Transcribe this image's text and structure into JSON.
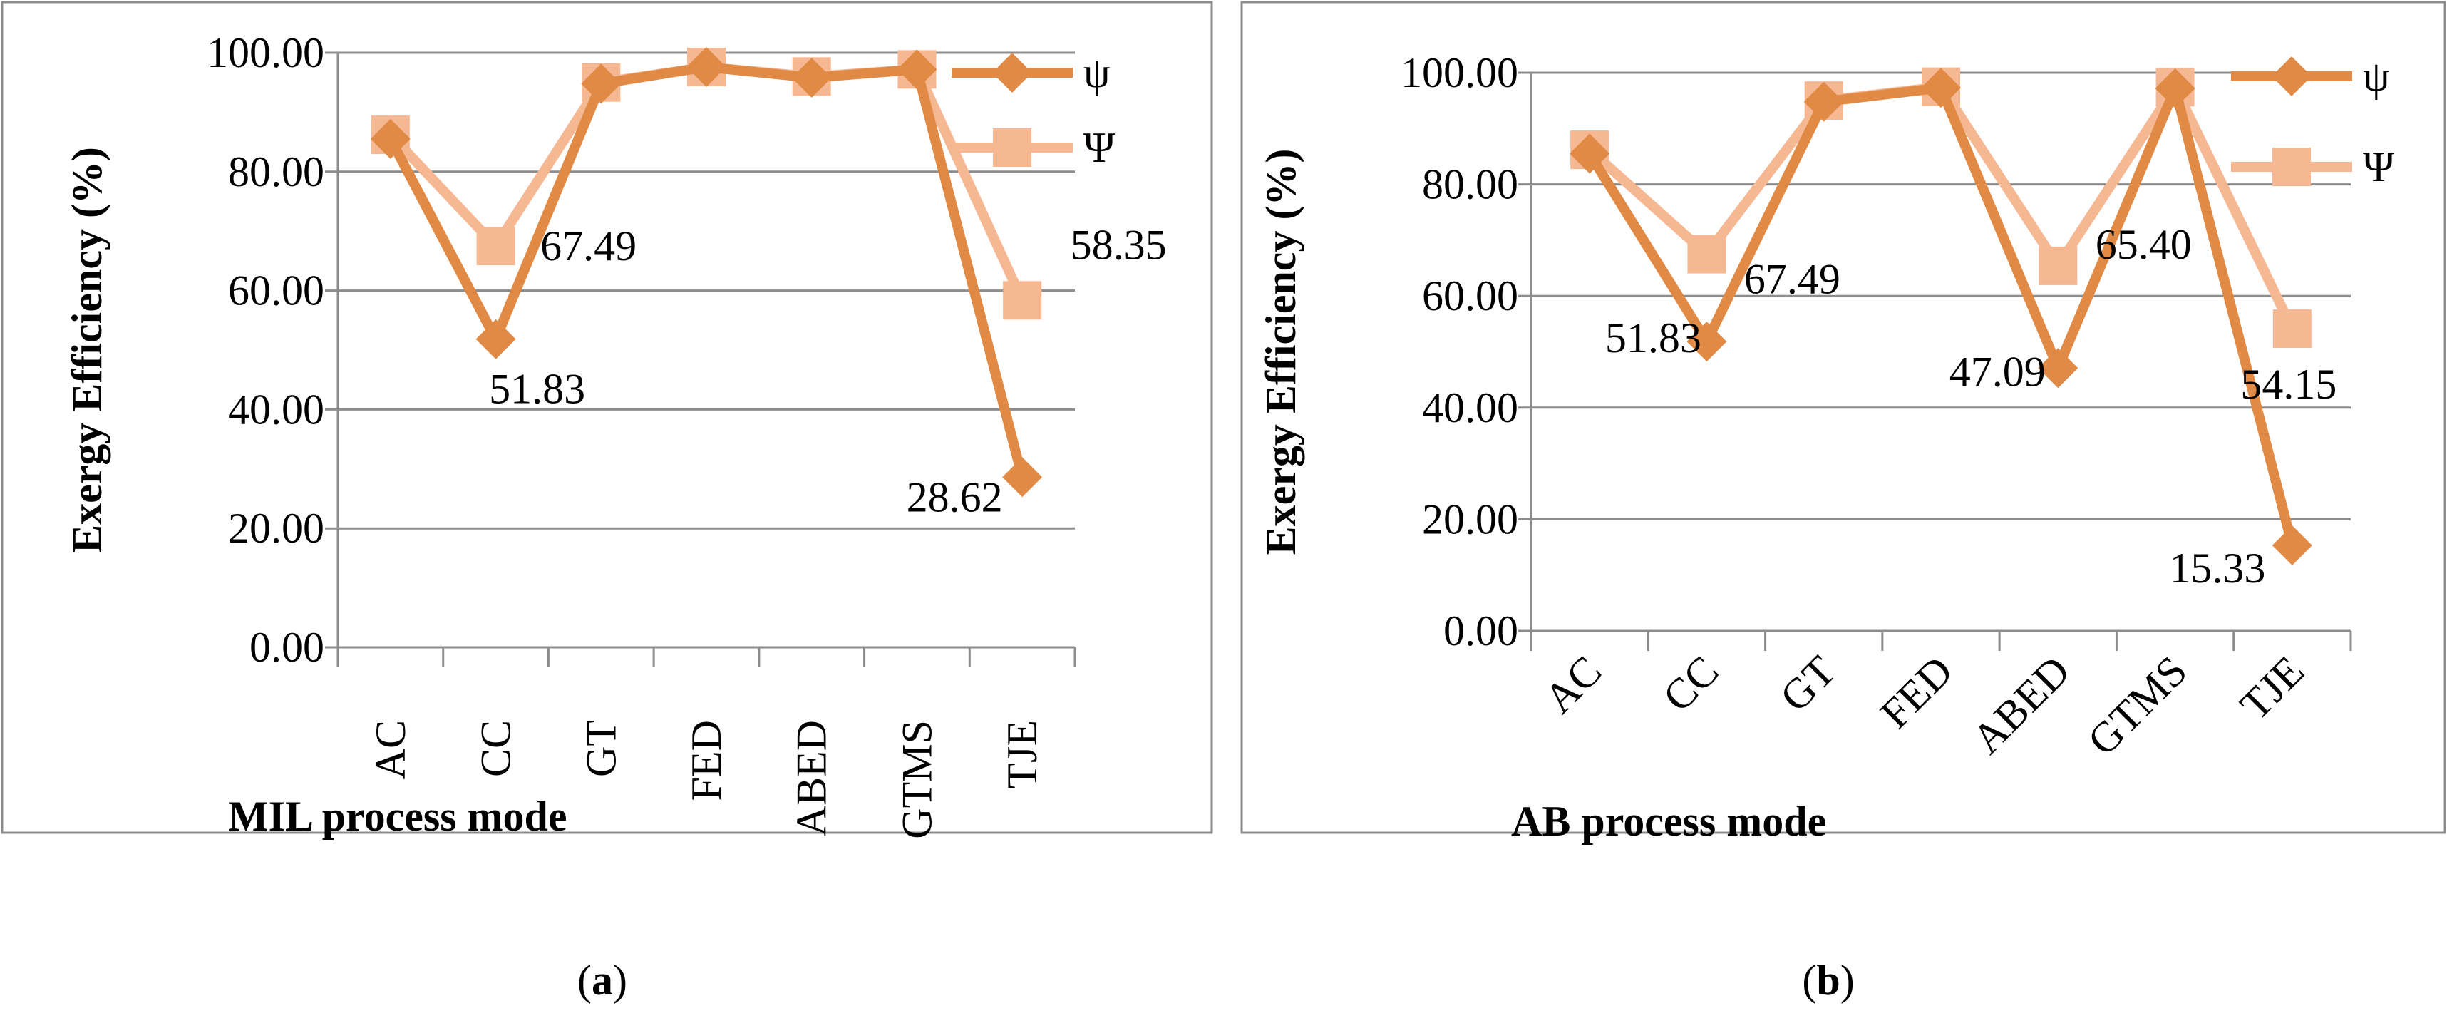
{
  "panels": [
    {
      "caption_letter": "a",
      "chart_data": {
        "type": "line",
        "categories": [
          "AC",
          "CC",
          "GT",
          "FED",
          "ABED",
          "GTMS",
          "TJE"
        ],
        "xlabel": "MIL process mode",
        "ylabel": "Exergy Efficiency (%)",
        "ylim": [
          0,
          100
        ],
        "ytick_step": 20,
        "ytick_labels": [
          "0.00",
          "20.00",
          "40.00",
          "60.00",
          "80.00",
          "100.00"
        ],
        "grid": true,
        "legend_position": "top-right",
        "series": [
          {
            "name": "ψ",
            "color": "#E08A45",
            "marker": "diamond",
            "values": [
              85.5,
              51.83,
              94.8,
              97.6,
              95.8,
              97.2,
              28.62
            ],
            "data_labels": [
              null,
              "51.83",
              null,
              null,
              null,
              null,
              "28.62"
            ]
          },
          {
            "name": "Ψ",
            "color": "#F5B893",
            "marker": "square",
            "values": [
              86.2,
              67.49,
              95.0,
              97.6,
              96.0,
              97.2,
              58.35
            ],
            "data_labels": [
              null,
              "67.49",
              null,
              null,
              null,
              null,
              "58.35"
            ]
          }
        ]
      }
    },
    {
      "caption_letter": "b",
      "chart_data": {
        "type": "line",
        "categories": [
          "AC",
          "CC",
          "GT",
          "FED",
          "ABED",
          "GTMS",
          "TJE"
        ],
        "xlabel": "AB process mode",
        "ylabel": "Exergy Efficiency (%)",
        "ylim": [
          0,
          100
        ],
        "ytick_step": 20,
        "ytick_labels": [
          "0.00",
          "20.00",
          "40.00",
          "60.00",
          "80.00",
          "100.00"
        ],
        "grid": true,
        "legend_position": "top-right",
        "series": [
          {
            "name": "ψ",
            "color": "#E08A45",
            "marker": "diamond",
            "values": [
              85.5,
              51.83,
              94.8,
              97.3,
              47.09,
              97.2,
              15.33
            ],
            "data_labels": [
              null,
              "51.83",
              null,
              null,
              "47.09",
              null,
              "15.33"
            ]
          },
          {
            "name": "Ψ",
            "color": "#F5B893",
            "marker": "square",
            "values": [
              86.2,
              67.49,
              95.0,
              97.5,
              65.4,
              97.4,
              54.15
            ],
            "data_labels": [
              null,
              "67.49",
              null,
              null,
              "65.40",
              null,
              "54.15"
            ]
          }
        ]
      }
    }
  ]
}
